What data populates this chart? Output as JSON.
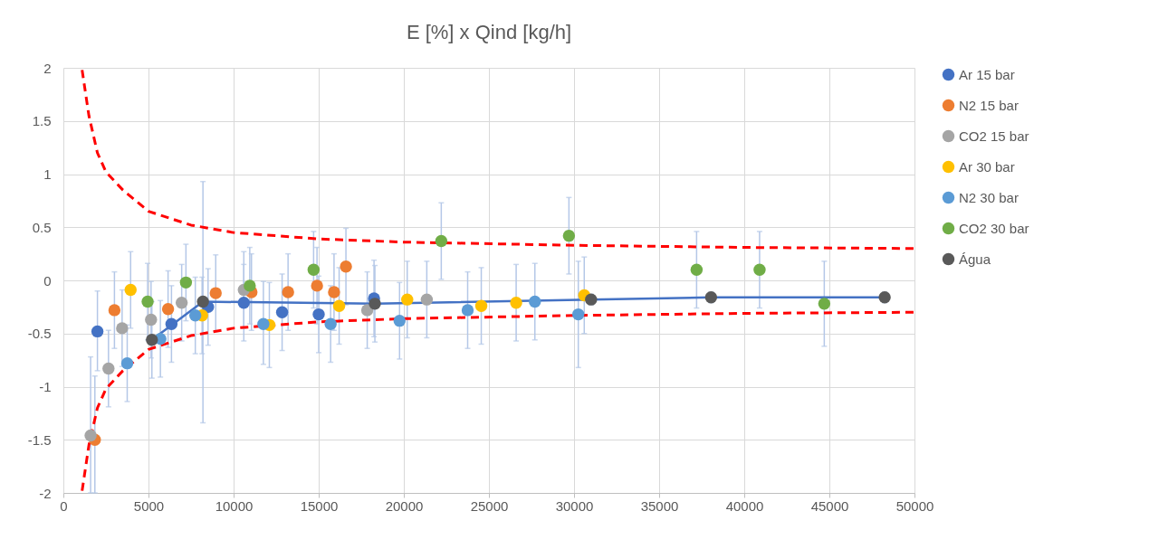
{
  "chart_data": {
    "type": "scatter",
    "title": "E [%] x Qind [kg/h]",
    "xlim": [
      0,
      50000
    ],
    "xticks": [
      0,
      5000,
      10000,
      15000,
      20000,
      25000,
      30000,
      35000,
      40000,
      45000,
      50000
    ],
    "ylim": [
      -2,
      2
    ],
    "yticks": [
      -2,
      -1.5,
      -1,
      -0.5,
      0,
      0.5,
      1,
      1.5,
      2
    ],
    "grid": true,
    "legend": "right",
    "marker": "circle",
    "series": [
      {
        "name": "Ar 15 bar",
        "color": "#4472c4",
        "x": [
          2000,
          6350,
          8500,
          10600,
          12850,
          15000,
          18250
        ],
        "values": [
          -0.48,
          -0.41,
          -0.25,
          -0.21,
          -0.3,
          -0.32,
          -0.17
        ],
        "errors": [
          [
            -0.85,
            -0.1
          ],
          0.36,
          0.36,
          0.36,
          0.36,
          0.36,
          0.36
        ]
      },
      {
        "name": "N2 15 bar",
        "color": "#ed7d31",
        "x": [
          1850,
          3000,
          6150,
          8950,
          11050,
          13200,
          14900,
          15900,
          16600
        ],
        "values": [
          -1.5,
          -0.28,
          -0.27,
          -0.12,
          -0.11,
          -0.11,
          -0.05,
          -0.11,
          0.13
        ],
        "errors": [
          [
            -2,
            -0.9
          ],
          0.36,
          0.36,
          0.36,
          0.36,
          0.36,
          0.36,
          0.36,
          0.36
        ]
      },
      {
        "name": "CO2 15 bar",
        "color": "#a5a5a5",
        "x": [
          1600,
          2650,
          3450,
          5150,
          6950,
          10600,
          17850,
          21350
        ],
        "values": [
          -1.46,
          -0.83,
          -0.45,
          -0.37,
          -0.21,
          -0.09,
          -0.28,
          -0.18
        ],
        "errors": [
          [
            -2,
            -0.72
          ],
          0.36,
          0.36,
          0.36,
          0.36,
          0.36,
          0.36,
          0.36
        ]
      },
      {
        "name": "Ar 30 bar",
        "color": "#ffc000",
        "x": [
          3950,
          8150,
          12100,
          16200,
          20200,
          24550,
          26600,
          30600
        ],
        "values": [
          -0.09,
          -0.33,
          -0.42,
          -0.24,
          -0.18,
          -0.24,
          -0.21,
          -0.14
        ],
        "errors": [
          0.36,
          0.36,
          [
            -0.82,
            -0.02
          ],
          0.36,
          0.36,
          0.36,
          0.36,
          0.36
        ]
      },
      {
        "name": "N2 30 bar",
        "color": "#5b9bd5",
        "x": [
          3750,
          5700,
          7750,
          11750,
          15700,
          19750,
          23750,
          27700,
          30250
        ],
        "values": [
          -0.78,
          -0.55,
          -0.33,
          -0.41,
          -0.41,
          -0.38,
          -0.28,
          -0.2,
          -0.32
        ],
        "errors": [
          0.36,
          0.36,
          0.36,
          [
            -0.79,
            -0.01
          ],
          0.36,
          0.36,
          0.36,
          0.36,
          0.5
        ]
      },
      {
        "name": "CO2 30 bar",
        "color": "#70ad47",
        "x": [
          4950,
          7200,
          10950,
          14700,
          22200,
          29700,
          37200,
          40900,
          44700
        ],
        "values": [
          -0.2,
          -0.02,
          -0.05,
          0.1,
          0.37,
          0.42,
          0.1,
          0.1,
          -0.22
        ],
        "errors": [
          0.36,
          0.36,
          0.36,
          0.36,
          0.36,
          0.36,
          0.36,
          0.36,
          0.4
        ]
      },
      {
        "type": "line",
        "marker": "none",
        "color": "#4472c4",
        "x": [
          5200,
          8200,
          18300,
          31000,
          38050,
          48250
        ],
        "values": [
          -0.56,
          -0.2,
          -0.22,
          -0.18,
          -0.16,
          -0.16
        ]
      },
      {
        "name": "Água",
        "marker": "circle",
        "color": "#595959",
        "x": [
          5200,
          8200,
          18300,
          31000,
          38050,
          48250
        ],
        "values": [
          -0.56,
          -0.2,
          -0.22,
          -0.18,
          -0.16,
          -0.16
        ],
        "errors": [
          0.36,
          [
            -1.34,
            0.93
          ],
          0.36,
          0.05,
          0.05,
          0.05
        ]
      },
      {
        "type": "line",
        "marker": "none",
        "line_style": "dashed",
        "color": "#ff0000",
        "x": [
          1100,
          1500,
          2000,
          2500,
          3500,
          5000,
          7500,
          10000,
          15000,
          20000,
          30000,
          40000,
          50000
        ],
        "values": [
          1.98,
          1.55,
          1.2,
          1.02,
          0.85,
          0.65,
          0.52,
          0.45,
          0.39,
          0.36,
          0.33,
          0.31,
          0.3
        ]
      },
      {
        "type": "line",
        "marker": "none",
        "line_style": "dashed",
        "color": "#ff0000",
        "x": [
          1100,
          1500,
          2000,
          2500,
          3500,
          5000,
          7500,
          10000,
          15000,
          20000,
          30000,
          40000,
          50000
        ],
        "values": [
          -1.98,
          -1.55,
          -1.2,
          -1.02,
          -0.85,
          -0.65,
          -0.52,
          -0.45,
          -0.39,
          -0.36,
          -0.33,
          -0.31,
          -0.3
        ]
      }
    ]
  }
}
